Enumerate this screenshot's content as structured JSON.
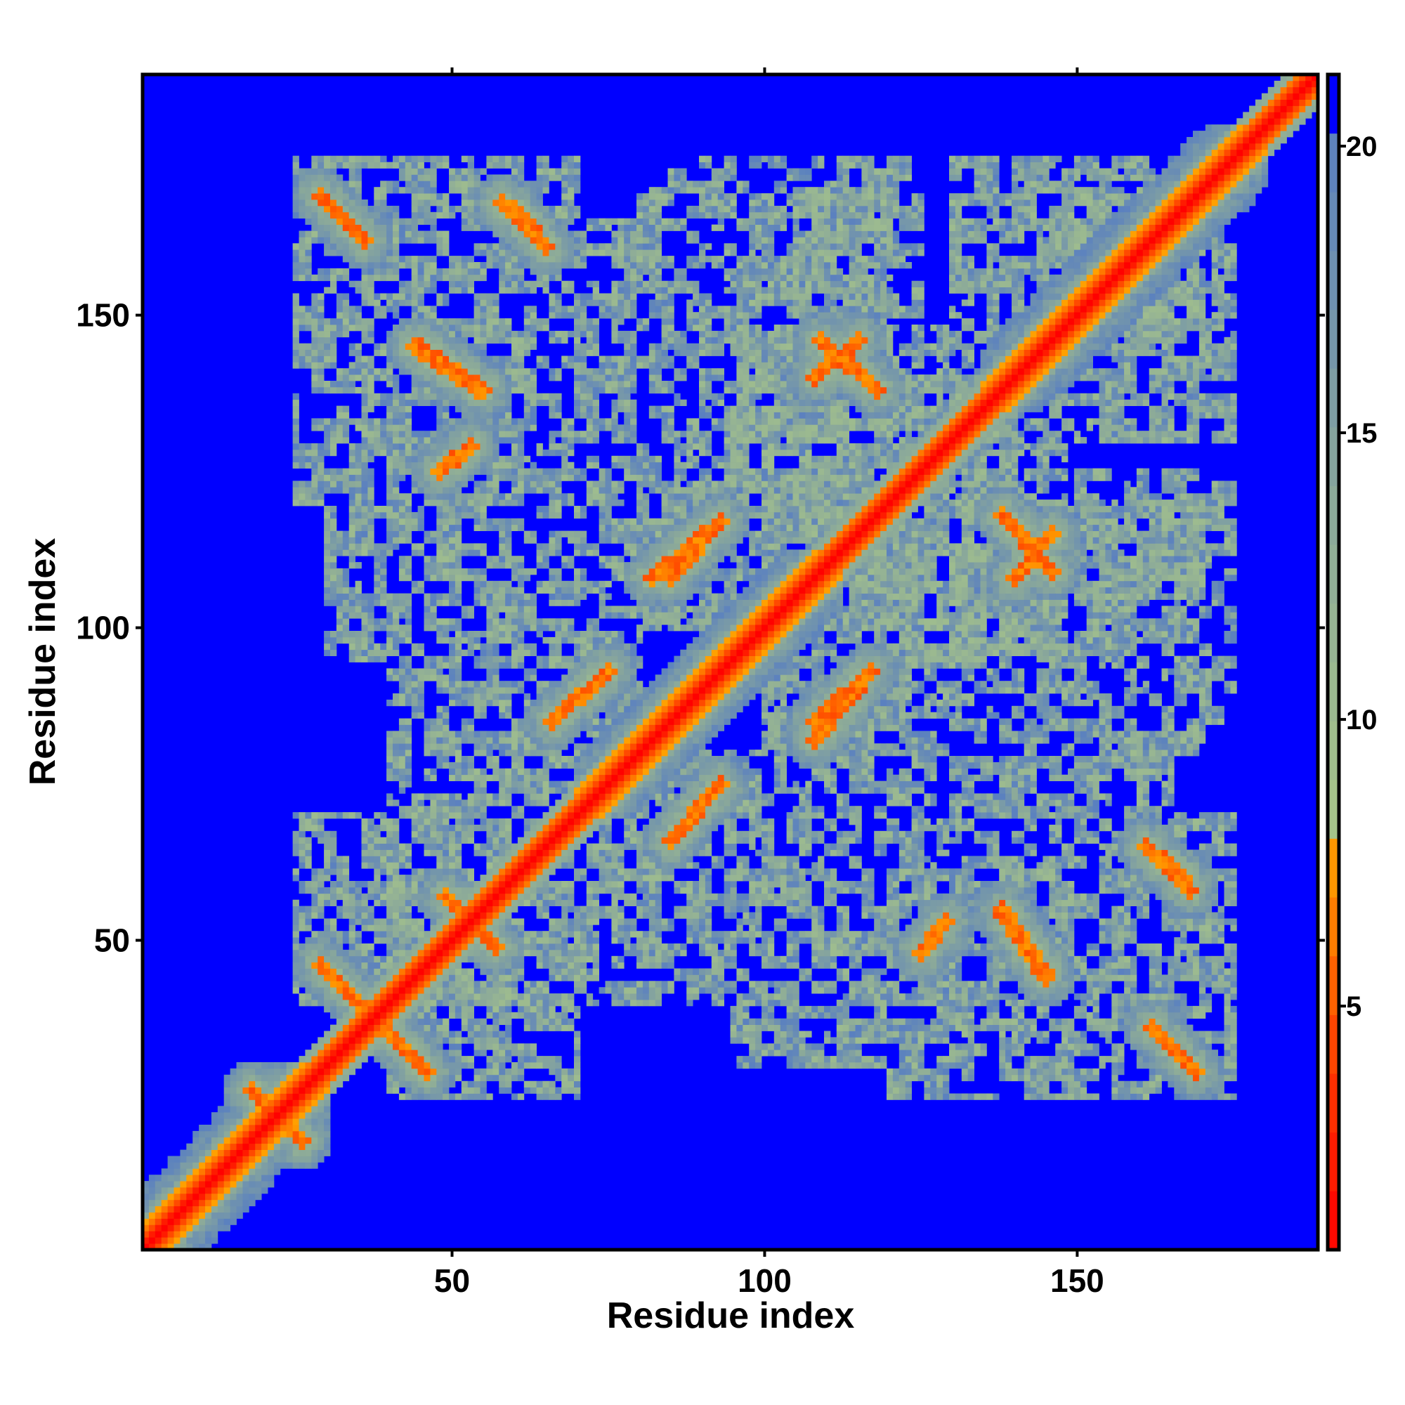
{
  "chart_data": {
    "type": "heatmap",
    "title": "",
    "xlabel": "Residue index",
    "ylabel": "Residue index",
    "n_residues": 188,
    "xlim": [
      0.5,
      188.5
    ],
    "ylim": [
      0.5,
      188.5
    ],
    "xticks": [
      50,
      100,
      150
    ],
    "yticks": [
      50,
      100,
      150
    ],
    "colorbar": {
      "range": [
        0.75,
        21.25
      ],
      "ticks": [
        5,
        10,
        15,
        20
      ],
      "stops": [
        {
          "v": 0.75,
          "color": "#ff0000"
        },
        {
          "v": 4.0,
          "color": "#ff3c00"
        },
        {
          "v": 6.5,
          "color": "#ff8000"
        },
        {
          "v": 8.2,
          "color": "#ffaa00"
        },
        {
          "v": 8.3,
          "color": "#a6c48a"
        },
        {
          "v": 14.0,
          "color": "#8aa89a"
        },
        {
          "v": 20.2,
          "color": "#5a80c0"
        },
        {
          "v": 20.3,
          "color": "#0000ff"
        },
        {
          "v": 21.25,
          "color": "#0000ff"
        }
      ],
      "above_color": "#0000ff"
    },
    "description_of_values": "pairwise residue distance map (symmetric), values above 20 shown blue",
    "diagonal_bands": [
      {
        "from": 1,
        "to": 30,
        "width": 10
      },
      {
        "from": 70,
        "to": 112,
        "width": 9
      },
      {
        "from": 135,
        "to": 180,
        "width": 10
      }
    ],
    "strand_pairs": [
      {
        "a": [
          29,
          36
        ],
        "b": [
          169,
          162
        ]
      },
      {
        "a": [
          58,
          64
        ],
        "b": [
          168,
          162
        ]
      },
      {
        "a": [
          60,
          65
        ],
        "b": [
          167,
          161
        ]
      },
      {
        "a": [
          29,
          35
        ],
        "b": [
          46,
          40
        ]
      },
      {
        "a": [
          18,
          22
        ],
        "b": [
          26,
          22
        ]
      },
      {
        "a": [
          49,
          53
        ],
        "b": [
          57,
          53
        ]
      },
      {
        "a": [
          66,
          75
        ],
        "b": [
          85,
          93
        ]
      },
      {
        "a": [
          85,
          92
        ],
        "b": [
          108,
          116
        ]
      },
      {
        "a": [
          82,
          93
        ],
        "b": [
          108,
          117
        ]
      },
      {
        "a": [
          109,
          118
        ],
        "b": [
          146,
          138
        ]
      },
      {
        "a": [
          108,
          115
        ],
        "b": [
          140,
          146
        ]
      },
      {
        "a": [
          45,
          55
        ],
        "b": [
          145,
          138
        ]
      },
      {
        "a": [
          44,
          54
        ],
        "b": [
          145,
          138
        ]
      },
      {
        "a": [
          125,
          129
        ],
        "b": [
          48,
          53
        ]
      }
    ],
    "contact_regions": [
      {
        "x": [
          120,
          175
        ],
        "y": [
          25,
          70
        ]
      },
      {
        "x": [
          95,
          125
        ],
        "y": [
          30,
          75
        ]
      },
      {
        "x": [
          65,
          100
        ],
        "y": [
          40,
          80
        ]
      },
      {
        "x": [
          120,
          170
        ],
        "y": [
          80,
          120
        ]
      },
      {
        "x": [
          95,
          140
        ],
        "y": [
          100,
          148
        ]
      },
      {
        "x": [
          40,
          70
        ],
        "y": [
          25,
          60
        ]
      },
      {
        "x": [
          100,
          165
        ],
        "y": [
          65,
          95
        ]
      },
      {
        "x": [
          150,
          175
        ],
        "y": [
          85,
          125
        ]
      },
      {
        "x": [
          105,
          120
        ],
        "y": [
          150,
          170
        ]
      },
      {
        "x": [
          130,
          170
        ],
        "y": [
          140,
          175
        ]
      }
    ]
  }
}
